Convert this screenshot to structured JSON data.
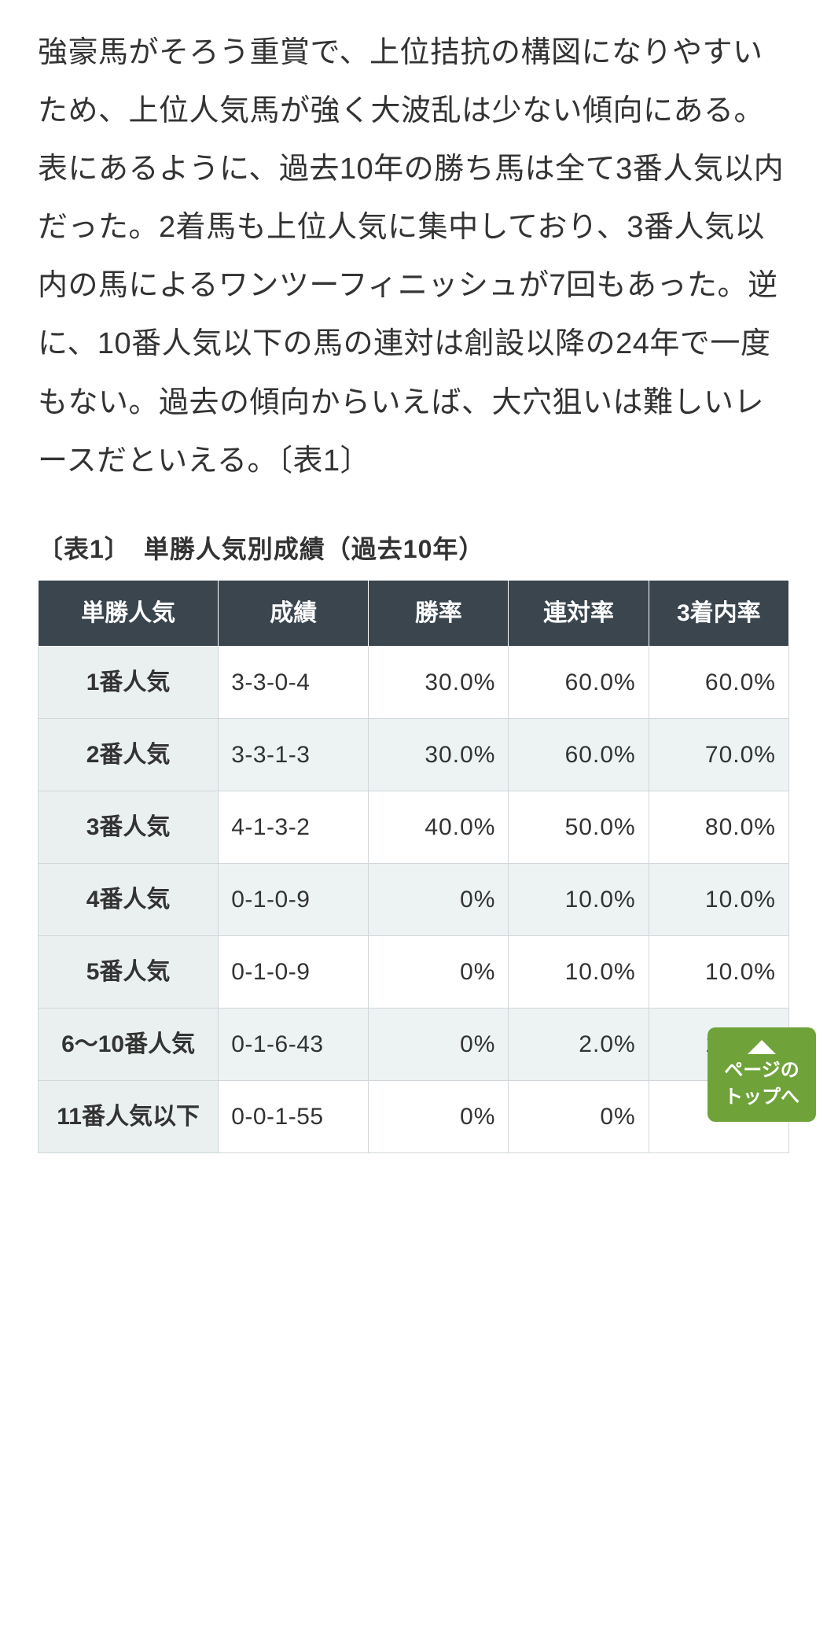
{
  "article": {
    "paragraph": "強豪馬がそろう重賞で、上位拮抗の構図になりやすいため、上位人気馬が強く大波乱は少ない傾向にある。表にあるように、過去10年の勝ち馬は全て3番人気以内だった。2着馬も上位人気に集中しており、3番人気以内の馬によるワンツーフィニッシュが7回もあった。逆に、10番人気以下の馬の連対は創設以降の24年で一度もない。過去の傾向からいえば、大穴狙いは難しいレースだといえる。〔表1〕"
  },
  "table": {
    "title": "〔表1〕　単勝人気別成績（過去10年）",
    "columns": [
      "単勝人気",
      "成績",
      "勝率",
      "連対率",
      "3着内率"
    ],
    "rows": [
      {
        "popularity": "1番人気",
        "record": "3-3-0-4",
        "win": "30.0%",
        "rentai": "60.0%",
        "chakunai": "60.0%"
      },
      {
        "popularity": "2番人気",
        "record": "3-3-1-3",
        "win": "30.0%",
        "rentai": "60.0%",
        "chakunai": "70.0%"
      },
      {
        "popularity": "3番人気",
        "record": "4-1-3-2",
        "win": "40.0%",
        "rentai": "50.0%",
        "chakunai": "80.0%"
      },
      {
        "popularity": "4番人気",
        "record": "0-1-0-9",
        "win": "0%",
        "rentai": "10.0%",
        "chakunai": "10.0%"
      },
      {
        "popularity": "5番人気",
        "record": "0-1-0-9",
        "win": "0%",
        "rentai": "10.0%",
        "chakunai": "10.0%"
      },
      {
        "popularity": "6～10番人気",
        "record": "0-1-6-43",
        "win": "0%",
        "rentai": "2.0%",
        "chakunai": "14.0%"
      },
      {
        "popularity": "11番人気以下",
        "record": "0-0-1-55",
        "win": "0%",
        "rentai": "0%",
        "chakunai": ""
      }
    ]
  },
  "pageTop": {
    "line1": "ページの",
    "line2": "トップへ"
  },
  "style": {
    "header_bg": "#3a454e",
    "header_fg": "#ffffff",
    "rowhead_bg": "#eaf0f0",
    "alt_bg": "#edf3f3",
    "border": "#d0d6da",
    "text": "#333333",
    "btn_bg": "#6fa33a"
  }
}
